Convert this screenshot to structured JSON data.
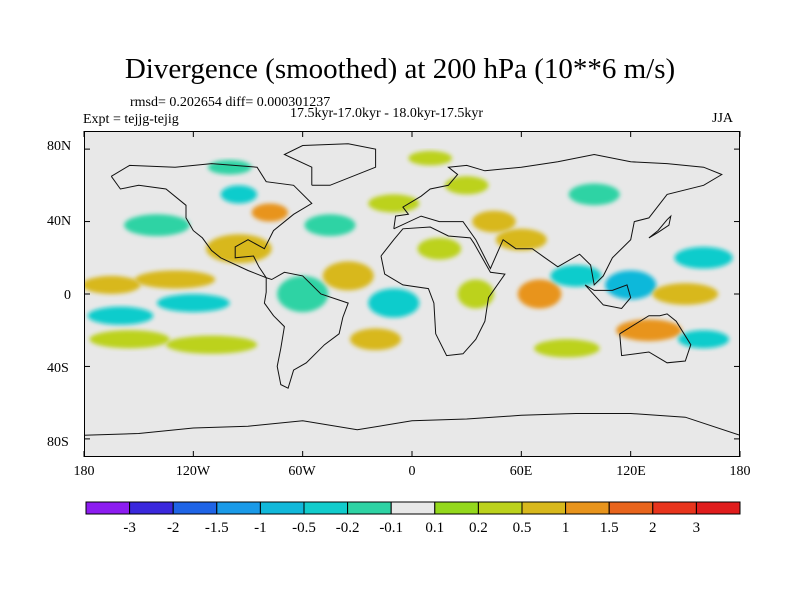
{
  "chart_data": {
    "type": "heatmap",
    "title": "Divergence (smoothed) at 200 hPa (10**6 m/s)",
    "stats": "rmsd= 0.202654 diff= 0.000301237",
    "experiment": "Expt = tejjg-tejig",
    "period": "17.5kyr-17.0kyr - 18.0kyr-17.5kyr",
    "season": "JJA",
    "x_ticks": [
      "180",
      "120W",
      "60W",
      "0",
      "60E",
      "120E",
      "180"
    ],
    "x_tick_values": [
      -180,
      -120,
      -60,
      0,
      60,
      120,
      180
    ],
    "y_ticks": [
      "80N",
      "40N",
      "0",
      "40S",
      "80S"
    ],
    "y_tick_values": [
      80,
      40,
      0,
      -40,
      -80
    ],
    "xlim": [
      -180,
      180
    ],
    "ylim": [
      -90,
      90
    ],
    "colorbar_levels": [
      "-3",
      "-2",
      "-1.5",
      "-1",
      "-0.5",
      "-0.2",
      "-0.1",
      "0.1",
      "0.2",
      "0.5",
      "1",
      "1.5",
      "2",
      "3"
    ],
    "colorbar_colors": [
      "#8c1cf0",
      "#3a28dc",
      "#1f64e6",
      "#1a9ae8",
      "#11b8da",
      "#11cccc",
      "#2ed3a4",
      "#e8e8e8",
      "#94d81c",
      "#bcd21c",
      "#d8b81c",
      "#e8941c",
      "#e8641c",
      "#e8341c",
      "#e01c1c"
    ],
    "blobs": [
      {
        "lon": -165,
        "lat": 5,
        "rx": 16,
        "ry": 5,
        "v": 0.5
      },
      {
        "lon": -130,
        "lat": 8,
        "rx": 22,
        "ry": 5,
        "v": 0.5
      },
      {
        "lon": -160,
        "lat": -12,
        "rx": 18,
        "ry": 5,
        "v": -0.5
      },
      {
        "lon": -120,
        "lat": -5,
        "rx": 20,
        "ry": 5,
        "v": -0.5
      },
      {
        "lon": -155,
        "lat": -25,
        "rx": 22,
        "ry": 5,
        "v": 0.2
      },
      {
        "lon": -110,
        "lat": -28,
        "rx": 25,
        "ry": 5,
        "v": 0.2
      },
      {
        "lon": -140,
        "lat": 38,
        "rx": 18,
        "ry": 6,
        "v": -0.2
      },
      {
        "lon": -95,
        "lat": 25,
        "rx": 18,
        "ry": 8,
        "v": 0.5
      },
      {
        "lon": -78,
        "lat": 45,
        "rx": 10,
        "ry": 5,
        "v": 1
      },
      {
        "lon": -95,
        "lat": 55,
        "rx": 10,
        "ry": 5,
        "v": -0.5
      },
      {
        "lon": -60,
        "lat": 0,
        "rx": 14,
        "ry": 10,
        "v": -0.2
      },
      {
        "lon": -35,
        "lat": 10,
        "rx": 14,
        "ry": 8,
        "v": 0.5
      },
      {
        "lon": -10,
        "lat": -5,
        "rx": 14,
        "ry": 8,
        "v": -0.5
      },
      {
        "lon": -20,
        "lat": -25,
        "rx": 14,
        "ry": 6,
        "v": 0.5
      },
      {
        "lon": -45,
        "lat": 38,
        "rx": 14,
        "ry": 6,
        "v": -0.2
      },
      {
        "lon": -10,
        "lat": 50,
        "rx": 14,
        "ry": 5,
        "v": 0.2
      },
      {
        "lon": 15,
        "lat": 25,
        "rx": 12,
        "ry": 6,
        "v": 0.2
      },
      {
        "lon": 35,
        "lat": 0,
        "rx": 10,
        "ry": 8,
        "v": 0.2
      },
      {
        "lon": 45,
        "lat": 40,
        "rx": 12,
        "ry": 6,
        "v": 0.5
      },
      {
        "lon": 60,
        "lat": 30,
        "rx": 14,
        "ry": 6,
        "v": 0.5
      },
      {
        "lon": 70,
        "lat": 0,
        "rx": 12,
        "ry": 8,
        "v": 1
      },
      {
        "lon": 90,
        "lat": 10,
        "rx": 14,
        "ry": 6,
        "v": -0.5
      },
      {
        "lon": 120,
        "lat": 5,
        "rx": 14,
        "ry": 8,
        "v": -1
      },
      {
        "lon": 150,
        "lat": 0,
        "rx": 18,
        "ry": 6,
        "v": 0.5
      },
      {
        "lon": 130,
        "lat": -20,
        "rx": 18,
        "ry": 6,
        "v": 1
      },
      {
        "lon": 160,
        "lat": 20,
        "rx": 16,
        "ry": 6,
        "v": -0.5
      },
      {
        "lon": 85,
        "lat": -30,
        "rx": 18,
        "ry": 5,
        "v": 0.2
      },
      {
        "lon": 160,
        "lat": -25,
        "rx": 14,
        "ry": 5,
        "v": -0.5
      },
      {
        "lon": 30,
        "lat": 60,
        "rx": 12,
        "ry": 5,
        "v": 0.2
      },
      {
        "lon": 100,
        "lat": 55,
        "rx": 14,
        "ry": 6,
        "v": -0.2
      },
      {
        "lon": -100,
        "lat": 70,
        "rx": 12,
        "ry": 4,
        "v": -0.2
      },
      {
        "lon": 10,
        "lat": 75,
        "rx": 12,
        "ry": 4,
        "v": 0.2
      }
    ]
  }
}
